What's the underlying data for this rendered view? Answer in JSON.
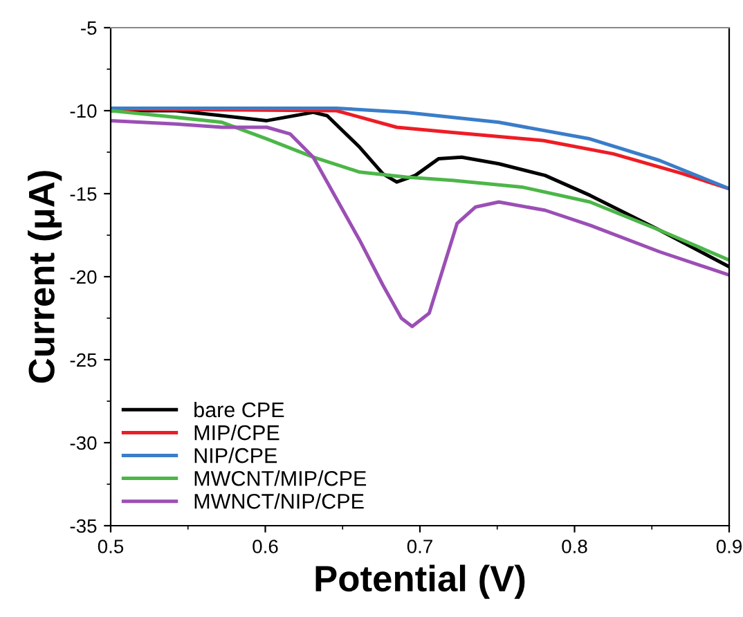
{
  "chart_data": {
    "type": "line",
    "xlabel": "Potential (V)",
    "ylabel": "Current (μA)",
    "xlim": [
      0.5,
      0.9
    ],
    "xticks": [
      0.5,
      0.6,
      0.7,
      0.8,
      0.9
    ],
    "ylim": [
      -35,
      -5
    ],
    "yticks": [
      -35,
      -30,
      -25,
      -20,
      -15,
      -10,
      -5
    ],
    "grid": false,
    "legend": "bottom left",
    "marker": "none",
    "line_style": "solid",
    "series": [
      {
        "name": "bare CPE",
        "color": "#000000",
        "x": [
          0.5,
          0.542,
          0.572,
          0.601,
          0.631,
          0.64,
          0.661,
          0.676,
          0.685,
          0.697,
          0.712,
          0.727,
          0.751,
          0.781,
          0.81,
          0.855,
          0.9
        ],
        "values": [
          -10.0,
          -10.0,
          -10.3,
          -10.6,
          -10.1,
          -10.3,
          -12.2,
          -13.8,
          -14.3,
          -13.9,
          -12.9,
          -12.8,
          -13.2,
          -13.9,
          -15.1,
          -17.2,
          -19.4
        ]
      },
      {
        "name": "MIP/CPE",
        "color": "#ee1c25",
        "x": [
          0.5,
          0.646,
          0.685,
          0.72,
          0.78,
          0.825,
          0.87,
          0.9
        ],
        "values": [
          -9.9,
          -10.0,
          -11.0,
          -11.3,
          -11.8,
          -12.6,
          -13.8,
          -14.7
        ]
      },
      {
        "name": "NIP/CPE",
        "color": "#3a7dc9",
        "x": [
          0.5,
          0.646,
          0.691,
          0.751,
          0.81,
          0.855,
          0.9
        ],
        "values": [
          -9.85,
          -9.85,
          -10.1,
          -10.7,
          -11.7,
          -13.0,
          -14.7
        ]
      },
      {
        "name": "MWCNT/MIP/CPE",
        "color": "#4cb648",
        "x": [
          0.5,
          0.542,
          0.572,
          0.601,
          0.631,
          0.661,
          0.691,
          0.721,
          0.766,
          0.81,
          0.855,
          0.9
        ],
        "values": [
          -10.0,
          -10.4,
          -10.7,
          -11.7,
          -12.8,
          -13.7,
          -14.0,
          -14.2,
          -14.6,
          -15.5,
          -17.2,
          -19.0
        ]
      },
      {
        "name": "MWNCT/NIP/CPE",
        "color": "#9b4fb5",
        "x": [
          0.5,
          0.542,
          0.572,
          0.601,
          0.616,
          0.631,
          0.646,
          0.661,
          0.676,
          0.688,
          0.695,
          0.706,
          0.715,
          0.724,
          0.736,
          0.751,
          0.781,
          0.81,
          0.855,
          0.9
        ],
        "values": [
          -10.6,
          -10.8,
          -11.0,
          -11.0,
          -11.4,
          -12.8,
          -15.3,
          -17.8,
          -20.5,
          -22.5,
          -23.0,
          -22.2,
          -19.5,
          -16.8,
          -15.8,
          -15.5,
          -16.0,
          -16.9,
          -18.5,
          -19.9
        ]
      }
    ]
  }
}
